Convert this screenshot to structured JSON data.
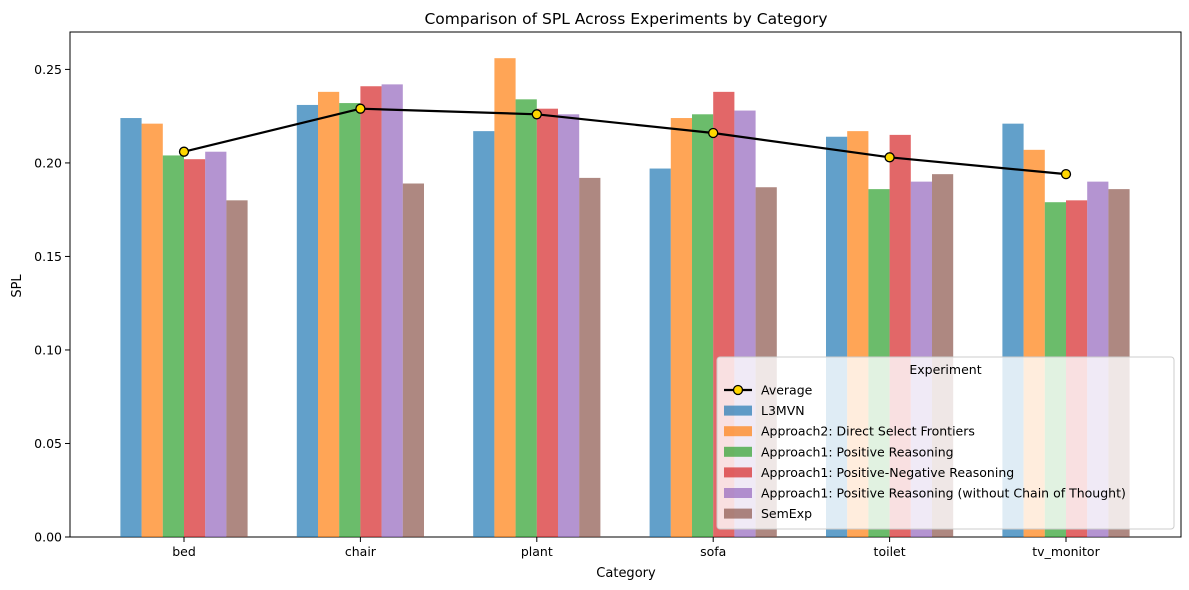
{
  "chart_data": {
    "type": "bar",
    "title": "Comparison of SPL Across Experiments by Category",
    "xlabel": "Category",
    "ylabel": "SPL",
    "ylim": [
      0,
      0.27
    ],
    "yticks": [
      "0.00",
      "0.05",
      "0.10",
      "0.15",
      "0.20",
      "0.25"
    ],
    "categories": [
      "bed",
      "chair",
      "plant",
      "sofa",
      "toilet",
      "tv_monitor"
    ],
    "series": [
      {
        "name": "L3MVN",
        "color": "#1f77b4",
        "values": [
          0.224,
          0.231,
          0.217,
          0.197,
          0.214,
          0.221
        ]
      },
      {
        "name": "Approach2: Direct Select Frontiers",
        "color": "#ff7f0e",
        "values": [
          0.221,
          0.238,
          0.256,
          0.224,
          0.217,
          0.207
        ]
      },
      {
        "name": "Approach1: Positive Reasoning",
        "color": "#2ca02c",
        "values": [
          0.204,
          0.232,
          0.234,
          0.226,
          0.186,
          0.179
        ]
      },
      {
        "name": "Approach1: Positive-Negative Reasoning",
        "color": "#d62728",
        "values": [
          0.202,
          0.241,
          0.229,
          0.238,
          0.215,
          0.18
        ]
      },
      {
        "name": "Approach1: Positive Reasoning (without Chain of Thought)",
        "color": "#9467bd",
        "values": [
          0.206,
          0.242,
          0.226,
          0.228,
          0.19,
          0.19
        ]
      },
      {
        "name": "SemExp",
        "color": "#8c564b",
        "values": [
          0.18,
          0.189,
          0.192,
          0.187,
          0.194,
          0.186
        ]
      }
    ],
    "line": {
      "name": "Average",
      "color": "#000000",
      "marker_color": "#ffd700",
      "values": [
        0.206,
        0.229,
        0.226,
        0.216,
        0.203,
        0.194
      ]
    },
    "legend": {
      "title": "Experiment",
      "placement": "lower-right"
    }
  }
}
